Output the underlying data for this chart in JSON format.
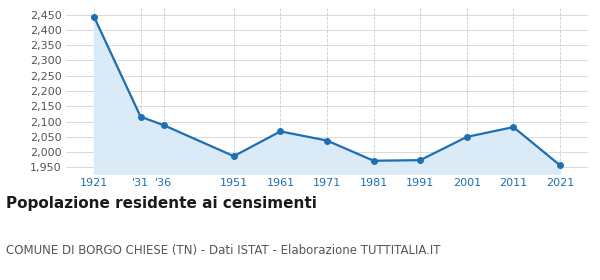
{
  "years": [
    1921,
    1931,
    1936,
    1951,
    1961,
    1971,
    1981,
    1991,
    2001,
    2011,
    2021
  ],
  "population": [
    2443,
    2116,
    2088,
    1987,
    2068,
    2038,
    1972,
    1974,
    2050,
    2082,
    1957
  ],
  "x_labels": [
    "1921",
    "'31",
    "'36",
    "1951",
    "1961",
    "1971",
    "1981",
    "1991",
    "2001",
    "2011",
    "2021"
  ],
  "line_color": "#1e6eb0",
  "fill_color": "#daeaf7",
  "marker_color": "#1e6eb0",
  "bg_color": "#ffffff",
  "grid_color": "#cccccc",
  "ylim_min": 1930,
  "ylim_max": 2470,
  "yticks": [
    1950,
    2000,
    2050,
    2100,
    2150,
    2200,
    2250,
    2300,
    2350,
    2400,
    2450
  ],
  "title": "Popolazione residente ai censimenti",
  "subtitle": "COMUNE DI BORGO CHIESE (TN) - Dati ISTAT - Elaborazione TUTTITALIA.IT",
  "title_fontsize": 11,
  "subtitle_fontsize": 8.5,
  "title_color": "#1a1a1a",
  "subtitle_color": "#555555",
  "axis_label_color": "#1e6eb0",
  "tick_fontsize": 8.0,
  "ytick_color": "#555555"
}
